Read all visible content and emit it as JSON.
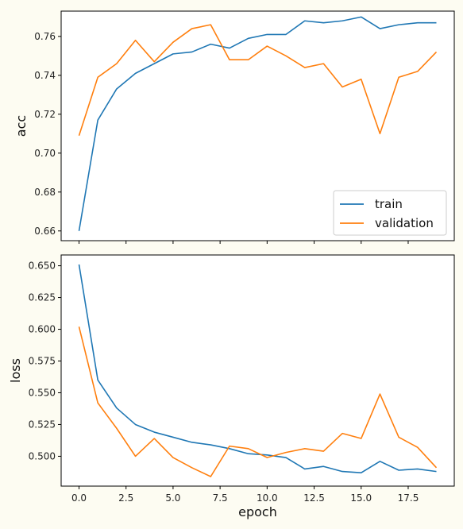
{
  "chart_data": [
    {
      "type": "line",
      "title": "",
      "xlabel": "",
      "ylabel": "acc",
      "x": [
        0,
        1,
        2,
        3,
        4,
        5,
        6,
        7,
        8,
        9,
        10,
        11,
        12,
        13,
        14,
        15,
        16,
        17,
        18,
        19
      ],
      "xlim": [
        -0.95,
        19.95
      ],
      "ylim": [
        0.655,
        0.773
      ],
      "xticks": [
        0.0,
        2.5,
        5.0,
        7.5,
        10.0,
        12.5,
        15.0,
        17.5
      ],
      "xtick_labels": [],
      "yticks": [
        0.66,
        0.68,
        0.7,
        0.72,
        0.74,
        0.76
      ],
      "ytick_labels": [
        "0.66",
        "0.68",
        "0.70",
        "0.72",
        "0.74",
        "0.76"
      ],
      "grid": false,
      "legend": "bottom-right",
      "series": [
        {
          "name": "train",
          "color": "#1f77b4",
          "values": [
            0.66,
            0.717,
            0.733,
            0.741,
            0.746,
            0.751,
            0.752,
            0.756,
            0.754,
            0.759,
            0.761,
            0.761,
            0.768,
            0.767,
            0.768,
            0.77,
            0.764,
            0.766,
            0.767,
            0.767
          ]
        },
        {
          "name": "validation",
          "color": "#ff7f0e",
          "values": [
            0.709,
            0.739,
            0.746,
            0.758,
            0.747,
            0.757,
            0.764,
            0.766,
            0.748,
            0.748,
            0.755,
            0.75,
            0.744,
            0.746,
            0.734,
            0.738,
            0.71,
            0.739,
            0.742,
            0.752
          ]
        }
      ]
    },
    {
      "type": "line",
      "title": "",
      "xlabel": "epoch",
      "ylabel": "loss",
      "x": [
        0,
        1,
        2,
        3,
        4,
        5,
        6,
        7,
        8,
        9,
        10,
        11,
        12,
        13,
        14,
        15,
        16,
        17,
        18,
        19
      ],
      "xlim": [
        -0.95,
        19.95
      ],
      "ylim": [
        0.4765,
        0.6585
      ],
      "xticks": [
        0.0,
        2.5,
        5.0,
        7.5,
        10.0,
        12.5,
        15.0,
        17.5
      ],
      "xtick_labels": [
        "0.0",
        "2.5",
        "5.0",
        "7.5",
        "10.0",
        "12.5",
        "15.0",
        "17.5"
      ],
      "yticks": [
        0.5,
        0.525,
        0.55,
        0.575,
        0.6,
        0.625,
        0.65
      ],
      "ytick_labels": [
        "0.500",
        "0.525",
        "0.550",
        "0.575",
        "0.600",
        "0.625",
        "0.650"
      ],
      "grid": false,
      "series": [
        {
          "name": "train",
          "color": "#1f77b4",
          "values": [
            0.651,
            0.56,
            0.538,
            0.525,
            0.519,
            0.515,
            0.511,
            0.509,
            0.506,
            0.502,
            0.501,
            0.499,
            0.49,
            0.492,
            0.488,
            0.487,
            0.496,
            0.489,
            0.49,
            0.488
          ]
        },
        {
          "name": "validation",
          "color": "#ff7f0e",
          "values": [
            0.602,
            0.542,
            0.522,
            0.5,
            0.514,
            0.499,
            0.491,
            0.484,
            0.508,
            0.506,
            0.499,
            0.503,
            0.506,
            0.504,
            0.518,
            0.514,
            0.549,
            0.515,
            0.507,
            0.491
          ]
        }
      ]
    }
  ]
}
